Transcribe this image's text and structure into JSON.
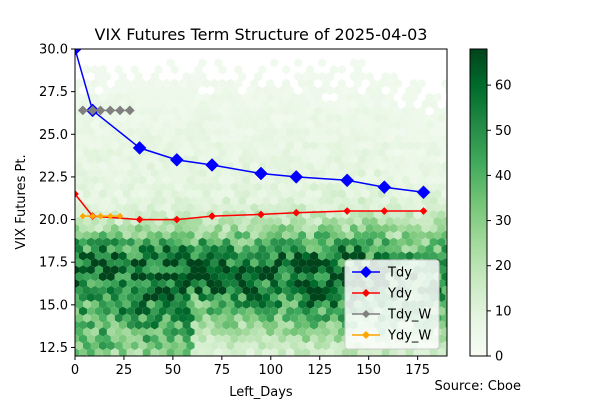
{
  "chart_data": {
    "type": "line",
    "title": "VIX Futures Term Structure of 2025-04-03",
    "xlabel": "Left_Days",
    "ylabel": "VIX Futures Pt.",
    "source": "Source: Cboe",
    "xlim": [
      0,
      190
    ],
    "ylim": [
      12,
      30
    ],
    "x_ticks": [
      0,
      25,
      50,
      75,
      100,
      125,
      150,
      175
    ],
    "y_ticks": [
      12.5,
      15.0,
      17.5,
      20.0,
      22.5,
      25.0,
      27.5,
      30.0
    ],
    "grid": false,
    "legend_position": "lower-right",
    "background": {
      "type": "hexbin",
      "colormap": "Greens",
      "colorbar_range": [
        0,
        68
      ],
      "colorbar_ticks": [
        0,
        10,
        20,
        30,
        40,
        50,
        60
      ]
    },
    "series": [
      {
        "name": "Tdy",
        "color": "#0000ff",
        "marker": "diamond",
        "x": [
          0,
          9,
          33,
          52,
          70,
          95,
          113,
          139,
          158,
          178
        ],
        "y": [
          30.0,
          26.4,
          24.2,
          23.5,
          23.2,
          22.7,
          22.5,
          22.3,
          21.9,
          21.6
        ]
      },
      {
        "name": "Ydy",
        "color": "#ff0000",
        "marker": "diamond",
        "x": [
          0,
          9,
          33,
          52,
          70,
          95,
          113,
          139,
          158,
          178
        ],
        "y": [
          21.5,
          20.2,
          20.0,
          20.0,
          20.2,
          20.3,
          20.4,
          20.5,
          20.5,
          20.5
        ]
      },
      {
        "name": "Tdy_W",
        "color": "#808080",
        "marker": "diamond",
        "x": [
          4,
          9,
          13,
          18,
          23,
          28
        ],
        "y": [
          26.4,
          26.4,
          26.4,
          26.4,
          26.4,
          26.4
        ]
      },
      {
        "name": "Ydy_W",
        "color": "#ffa500",
        "marker": "diamond",
        "x": [
          4,
          9,
          13,
          18,
          23
        ],
        "y": [
          20.2,
          20.2,
          20.2,
          20.2,
          20.2
        ]
      }
    ]
  }
}
